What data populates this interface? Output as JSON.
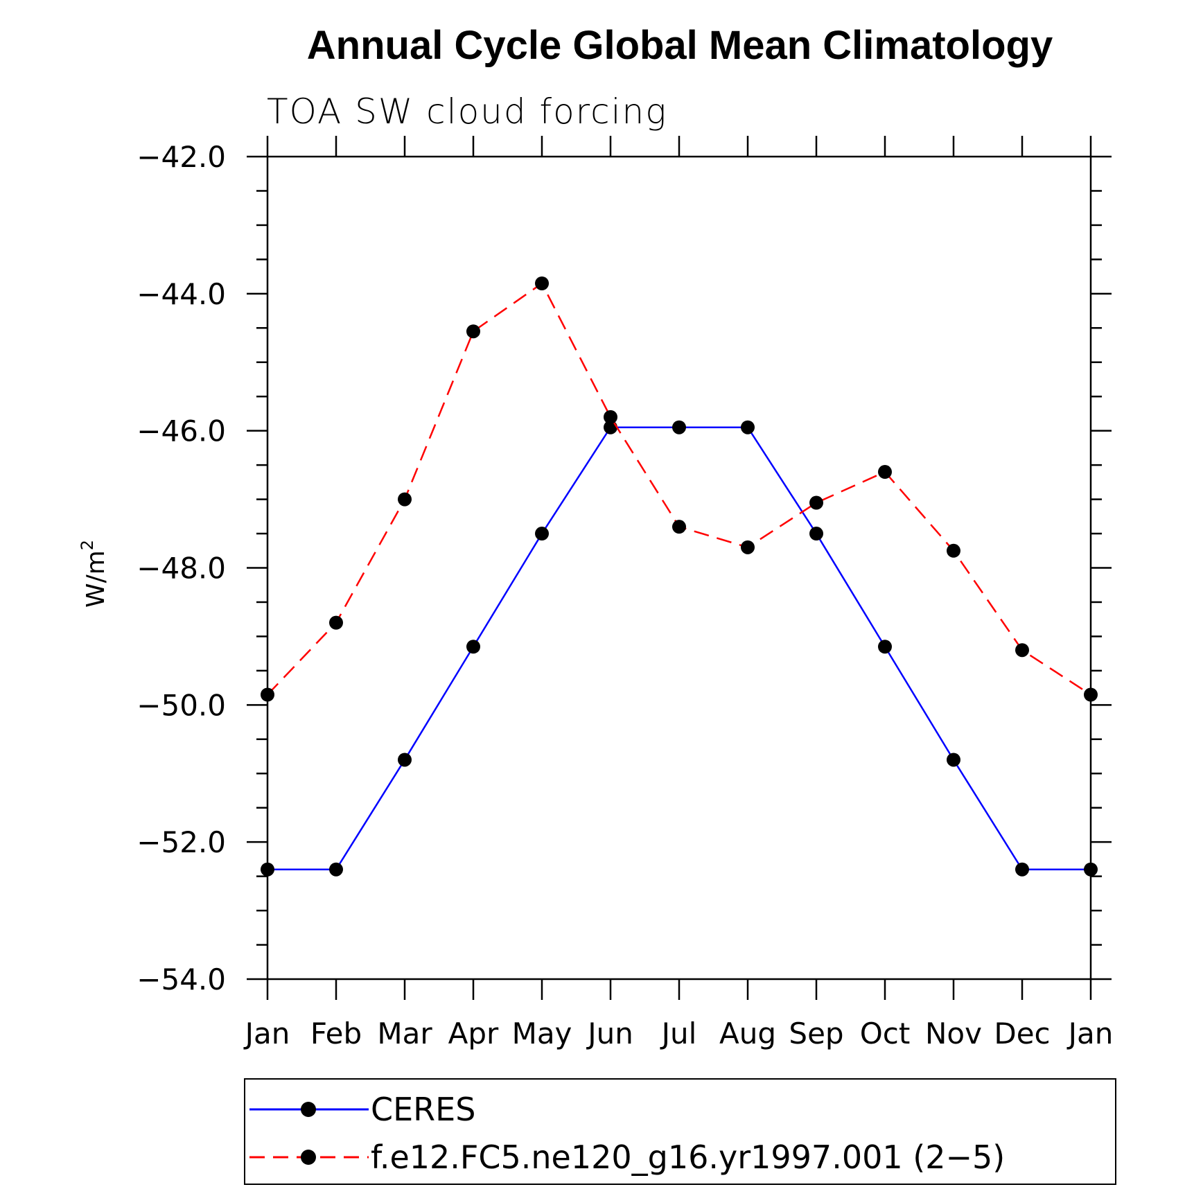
{
  "chart_data": {
    "type": "line",
    "title": "Annual Cycle Global Mean Climatology",
    "subtitle": "TOA SW cloud forcing",
    "ylabel": "W/m",
    "ylabel_superscript": "2",
    "xlabel": "",
    "categories": [
      "Jan",
      "Feb",
      "Mar",
      "Apr",
      "May",
      "Jun",
      "Jul",
      "Aug",
      "Sep",
      "Oct",
      "Nov",
      "Dec",
      "Jan"
    ],
    "ylim": [
      -54.0,
      -42.0
    ],
    "yticks": [
      -42.0,
      -44.0,
      -46.0,
      -48.0,
      -50.0,
      -52.0,
      -54.0
    ],
    "ytick_labels": [
      "−42.0",
      "−44.0",
      "−46.0",
      "−48.0",
      "−50.0",
      "−52.0",
      "−54.0"
    ],
    "grid": false,
    "legend_position": "bottom",
    "series": [
      {
        "name": "CERES",
        "color": "#0000ff",
        "line_style": "solid",
        "values": [
          -52.4,
          -52.4,
          -50.8,
          -49.15,
          -47.5,
          -45.95,
          -45.95,
          -45.95,
          -47.5,
          -49.15,
          -50.8,
          -52.4,
          -52.4
        ]
      },
      {
        "name": "f.e12.FC5.ne120_g16.yr1997.001 (2−5)",
        "color": "#ff0000",
        "line_style": "dashed",
        "values": [
          -49.85,
          -48.8,
          -47.0,
          -44.55,
          -43.85,
          -45.8,
          -47.4,
          -47.7,
          -47.05,
          -46.6,
          -47.75,
          -49.2,
          -49.85
        ]
      }
    ]
  }
}
